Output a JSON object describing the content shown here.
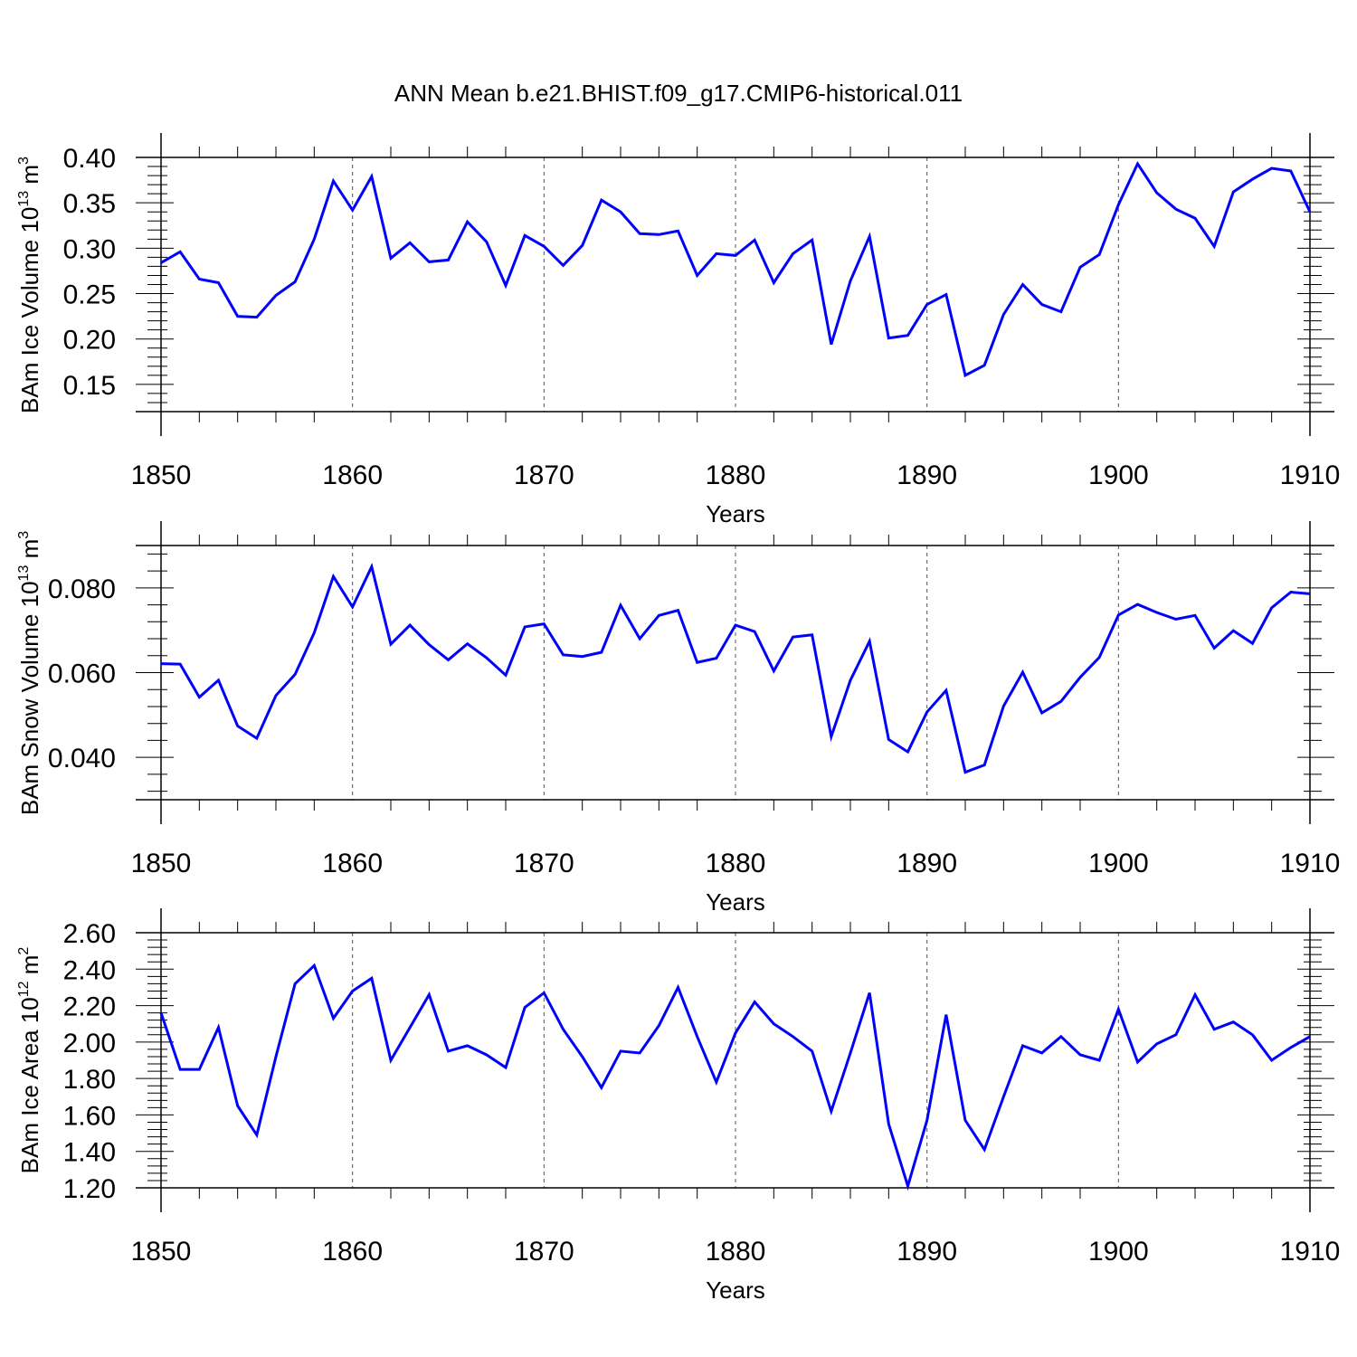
{
  "figure": {
    "title": "ANN Mean b.e21.BHIST.f09_g17.CMIP6-historical.011"
  },
  "chart_data": [
    {
      "type": "line",
      "ylabel": "BAm Ice Volume 10^13 m^3",
      "ylabel_parts": [
        "BAm Ice Volume 10",
        "13",
        " m",
        "3"
      ],
      "xlabel": "Years",
      "xlim": [
        1850,
        1910
      ],
      "ylim": [
        0.12,
        0.4
      ],
      "xticks": [
        1850,
        1860,
        1870,
        1880,
        1890,
        1900,
        1910
      ],
      "xtick_labels": [
        "1850",
        "1860",
        "1870",
        "1880",
        "1890",
        "1900",
        "1910"
      ],
      "yticks": [
        0.15,
        0.2,
        0.25,
        0.3,
        0.35,
        0.4
      ],
      "ytick_labels": [
        "0.15",
        "0.20",
        "0.25",
        "0.30",
        "0.35",
        "0.40"
      ],
      "grid": "vertical-dashed",
      "line_color": "#0000ff",
      "x_start": 1850,
      "values": [
        0.284,
        0.296,
        0.266,
        0.262,
        0.225,
        0.224,
        0.248,
        0.263,
        0.31,
        0.374,
        0.342,
        0.379,
        0.289,
        0.306,
        0.285,
        0.287,
        0.329,
        0.307,
        0.259,
        0.314,
        0.302,
        0.281,
        0.303,
        0.353,
        0.34,
        0.316,
        0.315,
        0.319,
        0.27,
        0.294,
        0.292,
        0.309,
        0.262,
        0.294,
        0.309,
        0.194,
        0.264,
        0.313,
        0.201,
        0.204,
        0.238,
        0.249,
        0.16,
        0.171,
        0.227,
        0.26,
        0.238,
        0.23,
        0.279,
        0.293,
        0.348,
        0.393,
        0.361,
        0.343,
        0.333,
        0.302,
        0.362,
        0.376,
        0.388,
        0.385,
        0.34
      ]
    },
    {
      "type": "line",
      "ylabel": "BAm Snow Volume 10^13 m^3",
      "ylabel_parts": [
        "BAm Snow Volume 10",
        "13",
        " m",
        "3"
      ],
      "xlabel": "Years",
      "xlim": [
        1850,
        1910
      ],
      "ylim": [
        0.03,
        0.09
      ],
      "xticks": [
        1850,
        1860,
        1870,
        1880,
        1890,
        1900,
        1910
      ],
      "xtick_labels": [
        "1850",
        "1860",
        "1870",
        "1880",
        "1890",
        "1900",
        "1910"
      ],
      "yticks": [
        0.04,
        0.06,
        0.08
      ],
      "ytick_labels": [
        "0.040",
        "0.060",
        "0.080"
      ],
      "grid": "vertical-dashed",
      "line_color": "#0000ff",
      "x_start": 1850,
      "values": [
        0.0621,
        0.062,
        0.0542,
        0.0582,
        0.0474,
        0.0445,
        0.0546,
        0.0596,
        0.0694,
        0.0827,
        0.0755,
        0.085,
        0.0667,
        0.0712,
        0.0666,
        0.063,
        0.0668,
        0.0635,
        0.0594,
        0.0708,
        0.0715,
        0.0642,
        0.0638,
        0.0648,
        0.0759,
        0.068,
        0.0735,
        0.0747,
        0.0624,
        0.0634,
        0.0712,
        0.0697,
        0.0604,
        0.0684,
        0.0689,
        0.0449,
        0.0582,
        0.0674,
        0.0442,
        0.0413,
        0.0507,
        0.0558,
        0.0365,
        0.0382,
        0.0521,
        0.0601,
        0.0505,
        0.0532,
        0.0589,
        0.0636,
        0.0736,
        0.0761,
        0.0742,
        0.0726,
        0.0735,
        0.0658,
        0.0699,
        0.0669,
        0.0753,
        0.079,
        0.0786
      ]
    },
    {
      "type": "line",
      "ylabel": "BAm Ice Area 10^12 m^2",
      "ylabel_parts": [
        "BAm Ice Area 10",
        "12",
        " m",
        "2"
      ],
      "xlabel": "Years",
      "xlim": [
        1850,
        1910
      ],
      "ylim": [
        1.2,
        2.6
      ],
      "xticks": [
        1850,
        1860,
        1870,
        1880,
        1890,
        1900,
        1910
      ],
      "xtick_labels": [
        "1850",
        "1860",
        "1870",
        "1880",
        "1890",
        "1900",
        "1910"
      ],
      "yticks": [
        1.2,
        1.4,
        1.6,
        1.8,
        2.0,
        2.2,
        2.4,
        2.6
      ],
      "ytick_labels": [
        "1.20",
        "1.40",
        "1.60",
        "1.80",
        "2.00",
        "2.20",
        "2.40",
        "2.60"
      ],
      "grid": "vertical-dashed",
      "line_color": "#0000ff",
      "x_start": 1850,
      "values": [
        2.16,
        1.85,
        1.85,
        2.08,
        1.65,
        1.49,
        1.92,
        2.32,
        2.42,
        2.13,
        2.28,
        2.35,
        1.9,
        2.08,
        2.26,
        1.95,
        1.98,
        1.93,
        1.86,
        2.19,
        2.27,
        2.07,
        1.92,
        1.75,
        1.95,
        1.94,
        2.09,
        2.3,
        2.03,
        1.78,
        2.05,
        2.22,
        2.1,
        2.03,
        1.95,
        1.62,
        1.94,
        2.27,
        1.55,
        1.21,
        1.57,
        2.15,
        1.57,
        1.41,
        1.7,
        1.98,
        1.94,
        2.03,
        1.93,
        1.9,
        2.18,
        1.89,
        1.99,
        2.04,
        2.26,
        2.07,
        2.11,
        2.04,
        1.9,
        1.97,
        2.03
      ]
    }
  ]
}
